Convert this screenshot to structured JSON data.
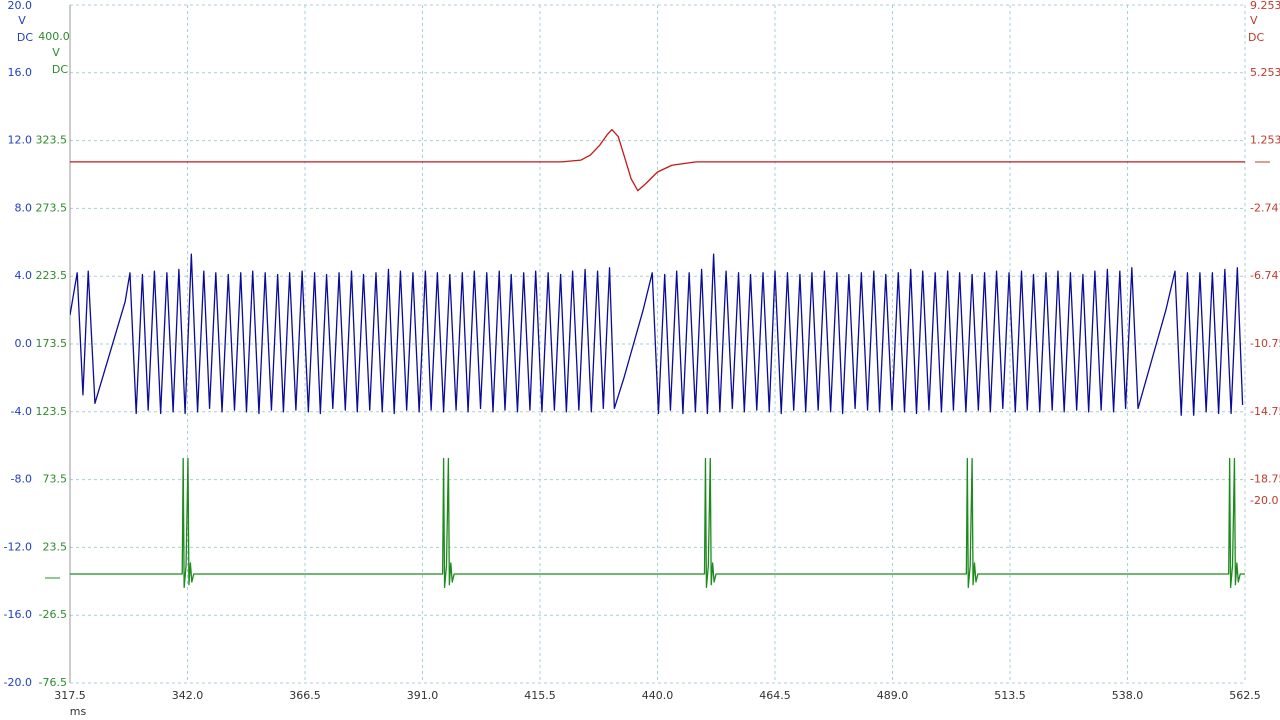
{
  "chart_data": {
    "type": "line",
    "x_unit": "ms",
    "xlim": [
      317.5,
      562.5
    ],
    "xticks": [
      317.5,
      {
        "value": 342,
        "label": "342.0"
      },
      366.5,
      {
        "value": 391,
        "label": "391.0"
      },
      415.5,
      {
        "value": 440,
        "label": "440.0"
      },
      464.5,
      {
        "value": 489,
        "label": "489.0"
      },
      513.5,
      {
        "value": 538,
        "label": "538.0"
      },
      562.5
    ],
    "ylim": [
      -20,
      20
    ],
    "yticks": [
      {
        "value": 20,
        "label": "20.0"
      },
      {
        "value": 16,
        "label": "16.0"
      },
      {
        "value": 12,
        "label": "12.0"
      },
      {
        "value": 8,
        "label": "8.0"
      },
      {
        "value": 4,
        "label": "4.0"
      },
      {
        "value": 0,
        "label": "0.0"
      },
      {
        "value": -4,
        "label": "-4.0"
      },
      {
        "value": -8,
        "label": "-8.0"
      },
      {
        "value": -12,
        "label": "-12.0"
      },
      {
        "value": -16,
        "label": "-16.0"
      },
      {
        "value": -20,
        "label": "-20.0"
      }
    ],
    "y_unit": [
      "V",
      "DC"
    ],
    "y2lim": [
      -76.5,
      423.5
    ],
    "y2ticks": [
      323.5,
      273.5,
      223.5,
      173.5,
      123.5,
      73.5,
      23.5,
      -26.5,
      -76.5
    ],
    "y2_top_label": "400.0",
    "y2_unit": [
      "V",
      "DC"
    ],
    "y3lim": [
      -30.747,
      9.253
    ],
    "y3ticks": [
      9.253,
      5.253,
      1.253,
      -2.747,
      -6.747,
      -10.75,
      -14.75,
      -18.75,
      {
        "value": -20,
        "label": "-20.0"
      }
    ],
    "y3_unit": [
      "V",
      "DC"
    ],
    "grid": true,
    "series": [
      {
        "axis": "y",
        "color": "#0b0b9a",
        "x": [
          317.5,
          319.0,
          320.2,
          321.3,
          322.7,
          324.8,
          326.9,
          329.0,
          330.0,
          331.3,
          332.6,
          333.8,
          335.1,
          336.4,
          337.7,
          339.0,
          340.2,
          341.5,
          342.8,
          344.1,
          345.4,
          346.6,
          347.9,
          349.2,
          350.5,
          351.8,
          353.1,
          354.3,
          355.6,
          356.9,
          358.2,
          359.5,
          360.8,
          362.0,
          363.3,
          364.6,
          365.9,
          367.2,
          368.5,
          369.7,
          371.0,
          372.3,
          373.6,
          374.9,
          376.2,
          377.4,
          378.7,
          380.0,
          381.3,
          382.6,
          383.9,
          385.1,
          386.4,
          387.7,
          389.0,
          390.3,
          391.6,
          392.8,
          394.1,
          395.4,
          396.7,
          398.0,
          399.3,
          400.5,
          401.8,
          403.1,
          404.4,
          405.7,
          407.0,
          408.2,
          409.5,
          410.8,
          412.1,
          413.4,
          414.6,
          415.9,
          417.2,
          418.5,
          419.8,
          421.0,
          422.3,
          423.6,
          424.9,
          426.2,
          427.5,
          428.7,
          430.0,
          431.0,
          433.0,
          435.0,
          437.0,
          438.9,
          440.2,
          441.5,
          442.7,
          444.0,
          445.3,
          446.6,
          447.9,
          449.2,
          450.4,
          451.7,
          453.0,
          454.3,
          455.6,
          456.9,
          458.1,
          459.4,
          460.7,
          462.0,
          463.3,
          464.5,
          465.8,
          467.1,
          468.4,
          469.7,
          470.9,
          472.2,
          473.5,
          474.8,
          476.1,
          477.4,
          478.6,
          479.9,
          481.2,
          482.5,
          483.8,
          485.1,
          486.3,
          487.6,
          488.9,
          490.2,
          491.5,
          492.8,
          494.0,
          495.3,
          496.6,
          497.9,
          499.2,
          500.5,
          501.7,
          503.0,
          504.3,
          505.6,
          506.9,
          508.2,
          509.4,
          510.7,
          512.0,
          513.3,
          514.6,
          515.9,
          517.1,
          518.4,
          519.7,
          521.0,
          522.3,
          523.5,
          524.8,
          526.1,
          527.4,
          528.7,
          529.9,
          531.2,
          532.5,
          533.8,
          535.1,
          536.4,
          537.6,
          538.9,
          540.2,
          542.0,
          544.0,
          546.0,
          547.9,
          549.2,
          550.5,
          551.8,
          553.1,
          554.4,
          555.7,
          557.0,
          558.3,
          559.6,
          560.9,
          562.0
        ],
        "values": [
          1.7,
          4.2,
          -3.0,
          4.3,
          -3.5,
          -1.5,
          0.5,
          2.5,
          4.2,
          -4.1,
          4.1,
          -3.9,
          4.3,
          -4.1,
          4.2,
          -4.0,
          4.4,
          -4.1,
          5.3,
          -4.0,
          4.3,
          -3.8,
          4.2,
          -4.0,
          4.1,
          -3.9,
          4.2,
          -4.0,
          4.3,
          -4.1,
          4.2,
          -3.9,
          4.1,
          -4.0,
          4.2,
          -3.9,
          4.3,
          -4.0,
          4.2,
          -4.1,
          4.1,
          -3.8,
          4.2,
          -3.9,
          4.3,
          -4.0,
          4.1,
          -3.9,
          4.2,
          -4.0,
          4.4,
          -4.1,
          4.3,
          -3.9,
          4.2,
          -4.0,
          4.3,
          -3.9,
          4.2,
          -4.0,
          4.1,
          -3.9,
          4.2,
          -4.0,
          4.3,
          -3.8,
          4.2,
          -4.0,
          4.3,
          -3.9,
          4.1,
          -4.0,
          4.2,
          -3.9,
          4.3,
          -4.0,
          4.2,
          -3.9,
          4.1,
          -4.0,
          4.3,
          -3.9,
          4.4,
          -4.0,
          4.3,
          -3.8,
          4.5,
          -3.8,
          -2.0,
          0.0,
          2.0,
          4.2,
          -4.1,
          4.1,
          -3.9,
          4.3,
          -4.1,
          4.2,
          -4.0,
          4.4,
          -4.1,
          5.3,
          -4.0,
          4.3,
          -3.8,
          4.2,
          -4.0,
          4.1,
          -3.9,
          4.2,
          -4.0,
          4.3,
          -4.1,
          4.2,
          -3.9,
          4.1,
          -4.0,
          4.2,
          -3.9,
          4.3,
          -4.0,
          4.2,
          -4.1,
          4.1,
          -3.8,
          4.2,
          -3.9,
          4.3,
          -4.0,
          4.1,
          -3.9,
          4.2,
          -4.0,
          4.4,
          -4.1,
          4.3,
          -3.9,
          4.2,
          -4.0,
          4.3,
          -3.9,
          4.2,
          -4.0,
          4.1,
          -3.9,
          4.2,
          -4.0,
          4.3,
          -3.8,
          4.2,
          -4.0,
          4.3,
          -3.9,
          4.1,
          -4.0,
          4.2,
          -3.9,
          4.3,
          -4.0,
          4.2,
          -3.9,
          4.1,
          -4.0,
          4.3,
          -3.9,
          4.4,
          -4.0,
          4.3,
          -3.8,
          4.5,
          -3.8,
          -2.0,
          0.0,
          2.0,
          4.3,
          -4.2,
          4.2,
          -4.2,
          4.2,
          -4.0,
          4.2,
          -4.1,
          4.4,
          -4.1,
          4.5,
          -3.6
        ]
      },
      {
        "axis": "y2",
        "color": "#1c8a1c",
        "x": [
          317.5,
          340.9,
          341.1,
          341.3,
          341.7,
          342.1,
          342.3,
          342.6,
          342.9,
          343.3,
          395.2,
          395.4,
          395.6,
          396.0,
          396.4,
          396.6,
          396.9,
          397.2,
          397.6,
          449.8,
          450.0,
          450.2,
          450.6,
          451.0,
          451.2,
          451.5,
          451.8,
          452.2,
          504.4,
          504.6,
          504.8,
          505.2,
          505.6,
          505.8,
          506.1,
          506.4,
          506.8,
          559.1,
          559.3,
          559.5,
          559.9,
          560.3,
          560.5,
          560.8,
          561.1,
          561.5,
          562.5
        ],
        "values": [
          3.9,
          3.9,
          89,
          -6,
          10,
          89,
          -4,
          12,
          -2,
          3.9,
          3.9,
          89,
          -6,
          10,
          89,
          -4,
          12,
          -2,
          3.9,
          3.9,
          89,
          -6,
          10,
          89,
          -4,
          12,
          -2,
          3.9,
          3.9,
          89,
          -6,
          10,
          89,
          -4,
          12,
          -2,
          3.9,
          3.9,
          89,
          -6,
          10,
          89,
          -4,
          12,
          -2,
          3.9,
          3.9
        ]
      },
      {
        "axis": "y3",
        "color": "#c21818",
        "x": [
          317.5,
          420.0,
          424.0,
          426.0,
          428.0,
          429.5,
          430.5,
          431.8,
          433.0,
          434.5,
          435.9,
          437.5,
          440.0,
          443.0,
          448.0,
          562.5
        ],
        "values": [
          0.0,
          0.0,
          0.1,
          0.4,
          1.0,
          1.6,
          1.9,
          1.5,
          0.4,
          -1.0,
          -1.7,
          -1.3,
          -0.6,
          -0.2,
          0.0,
          0.0
        ]
      }
    ]
  }
}
